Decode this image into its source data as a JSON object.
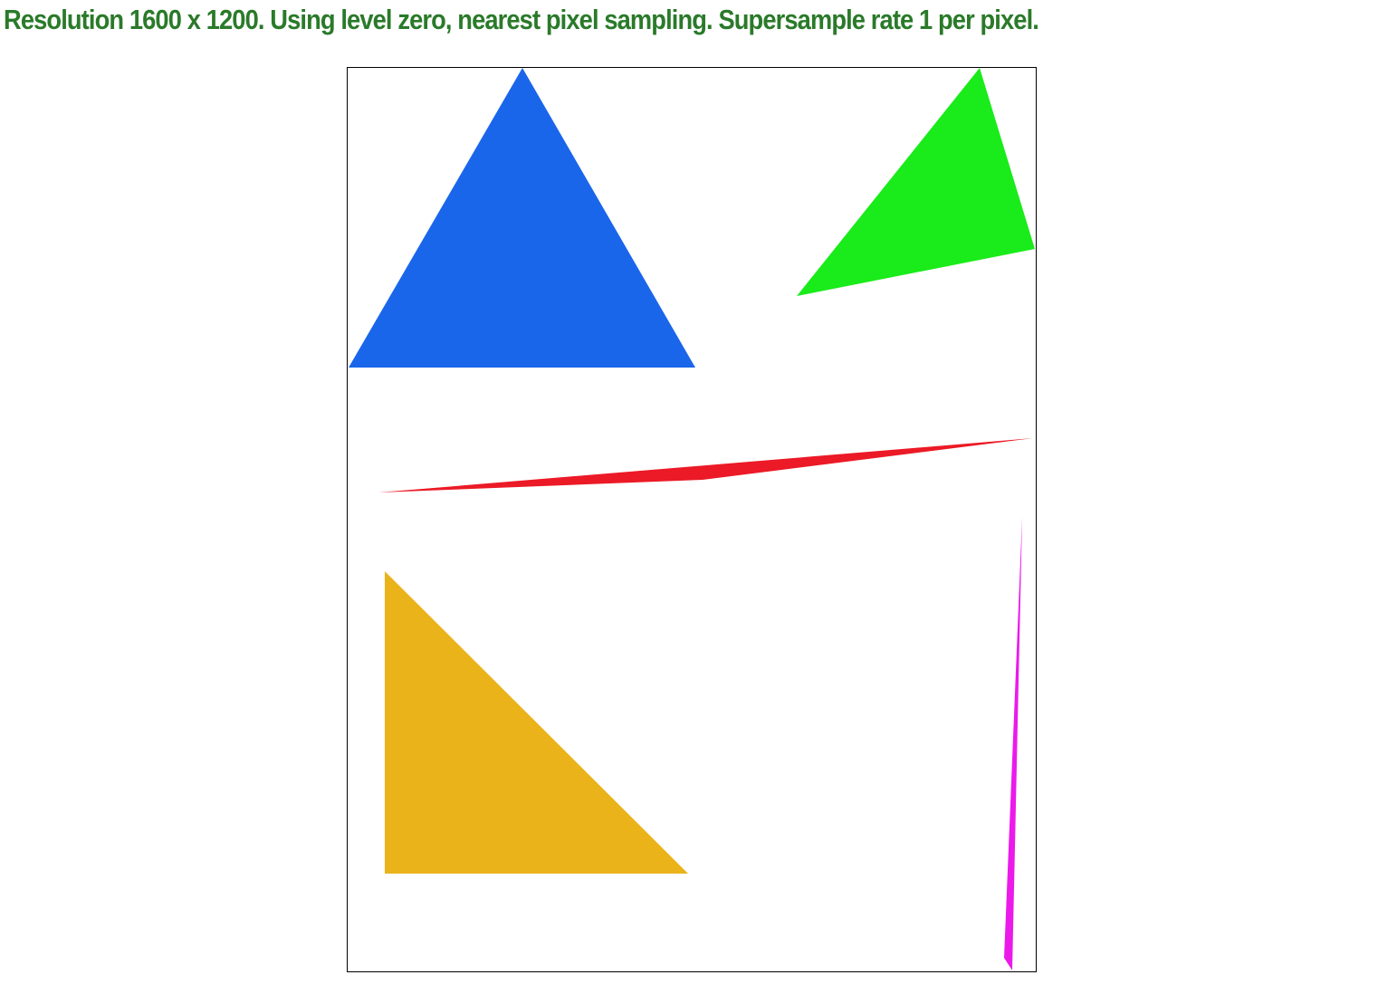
{
  "header": {
    "status_text": "Resolution 1600 x 1200. Using level zero, nearest pixel sampling. Supersample rate 1 per pixel.",
    "status_color": "#2a7a2a"
  },
  "canvas": {
    "background": "#ffffff",
    "border_color": "#000000",
    "shapes": [
      {
        "name": "blue-triangle",
        "color": "#1a66eb"
      },
      {
        "name": "green-triangle",
        "color": "#1aeb1a"
      },
      {
        "name": "red-sliver-triangle",
        "color": "#eb1a26"
      },
      {
        "name": "gold-triangle",
        "color": "#ebb31a"
      },
      {
        "name": "magenta-sliver-triangle",
        "color": "#eb1aeb"
      }
    ]
  }
}
